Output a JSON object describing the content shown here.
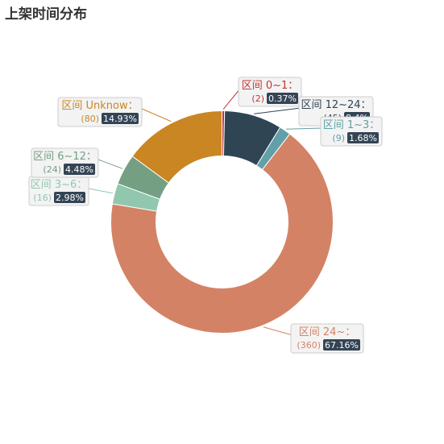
{
  "title": "上架时间分布",
  "chart_data": {
    "type": "pie",
    "donut": true,
    "title": "上架时间分布",
    "slices": [
      {
        "name": "区间 0~1：",
        "count_text": "(2)",
        "value": 2,
        "percent_text": "0.37%",
        "color": "#c23531"
      },
      {
        "name": "区间 12~24：",
        "count_text": "(45)",
        "value": 45,
        "percent_text": "8.4%",
        "color": "#2f4554"
      },
      {
        "name": "区间 1~3：",
        "count_text": "(9)",
        "value": 9,
        "percent_text": "1.68%",
        "color": "#61a0a8"
      },
      {
        "name": "区间 24~：",
        "count_text": "(360)",
        "value": 360,
        "percent_text": "67.16%",
        "color": "#d48265"
      },
      {
        "name": "区间 3~6：",
        "count_text": "(16)",
        "value": 16,
        "percent_text": "2.98%",
        "color": "#91c7ae"
      },
      {
        "name": "区间 6~12：",
        "count_text": "(24)",
        "value": 24,
        "percent_text": "4.48%",
        "color": "#749f83"
      },
      {
        "name": "区间 Unknow：",
        "count_text": "(80)",
        "value": 80,
        "percent_text": "14.93%",
        "color": "#ca8622"
      }
    ]
  }
}
